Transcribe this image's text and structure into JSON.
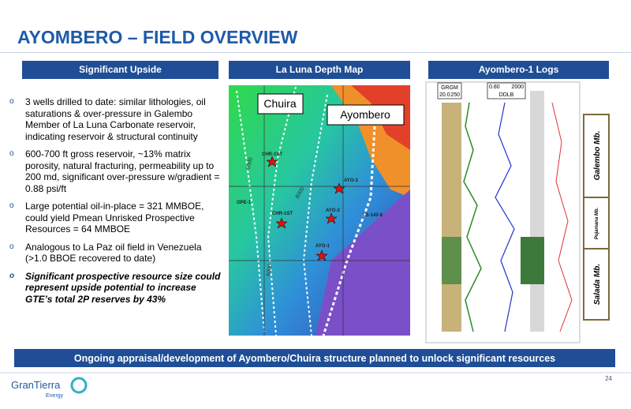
{
  "header": {
    "title": "AYOMBERO – FIELD OVERVIEW"
  },
  "panels": [
    {
      "heading": "Significant Upside",
      "bullets": [
        "3 wells drilled to date: similar lithologies, oil saturations & over-pressure in Galembo Member of La Luna Carbonate reservoir, indicating reservoir & structural continuity",
        "600-700 ft gross reservoir, ~13% matrix porosity, natural fracturing, permeability up to 200 md, significant over-pressure w/gradient = 0.88 psi/ft",
        "Large potential oil-in-place = 321 MMBOE, could yield Pmean Unrisked Prospective Resources = 64 MMBOE",
        "Analogous to La Paz oil field in Venezuela (>1.0 BBOE recovered to date)",
        "Significant prospective resource size could represent upside potential to increase GTE’s total 2P reserves by 43%"
      ]
    },
    {
      "heading": "La Luna Depth Map",
      "labels": [
        "Chuira",
        "Ayombero",
        "CHR-1ST",
        "OPE-1",
        "CHR-1ST",
        "AYO-3",
        "AYO-2",
        "LS-142-8",
        "AYO-1",
        "8000",
        "8000",
        "6000"
      ]
    },
    {
      "heading": "Ayombero-1 Logs",
      "labels": [
        "GRGM",
        "20.0",
        "250",
        "0.80",
        "2000",
        "DDLB",
        "Galembo Mb.",
        "Pujamana Mb.",
        "Salada Mb."
      ]
    }
  ],
  "banner": "Ongoing appraisal/development of Ayombero/Chuira structure planned to unlock significant resources",
  "footer": {
    "logo": "GranTierra",
    "logo_sub": "Energy",
    "page": "24"
  }
}
